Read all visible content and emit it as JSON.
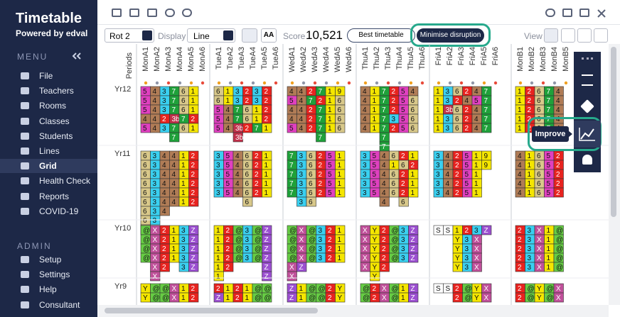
{
  "sidebar": {
    "title": "Timetable",
    "subtitle": "Powered by edval",
    "menu_heading": "MENU",
    "menu": [
      "File",
      "Teachers",
      "Rooms",
      "Classes",
      "Students",
      "Lines",
      "Grid",
      "Health Check",
      "Reports",
      "COVID-19"
    ],
    "admin_heading": "ADMIN",
    "admin": [
      "Setup",
      "Settings",
      "Help",
      "Consultant"
    ]
  },
  "toolbar": {
    "rotation": "Rot 2",
    "display_label": "Display",
    "display_value": "Line",
    "font_button": "AA",
    "score_label": "Score",
    "score": "10,521",
    "best_button": "Best timetable",
    "minimise_button": "Minimise disruption",
    "view_label": "View"
  },
  "tooltip": "Improve",
  "grid": {
    "periods_label": "Periods",
    "days": [
      {
        "columns": [
          "MonA1",
          "MonA2",
          "MonA3",
          "MonA4",
          "MonA5",
          "MonA6"
        ]
      },
      {
        "columns": [
          "TueA1",
          "TueA2",
          "TueA3",
          "TueA4",
          "TueA5",
          "TueA6"
        ]
      },
      {
        "columns": [
          "WedA1",
          "WedA2",
          "WedA3",
          "WedA4",
          "WedA5",
          "WedA6"
        ]
      },
      {
        "columns": [
          "ThuA1",
          "ThuA2",
          "ThuA3",
          "ThuA4",
          "ThuA5",
          "ThuA6"
        ]
      },
      {
        "columns": [
          "FriA1",
          "FriA2",
          "FriA3",
          "FriA4",
          "FriA5",
          "FriA6"
        ]
      },
      {
        "columns": [
          "MonB1",
          "MonB2",
          "MonB3",
          "MonB4",
          "MonB5"
        ]
      }
    ],
    "years": [
      {
        "label": "Yr12",
        "blocks": [
          [
            [
              "5",
              "4",
              "3",
              "7",
              "6",
              "1"
            ],
            [
              "5",
              "4",
              "3",
              "7",
              "6",
              "1"
            ],
            [
              "5",
              "4",
              "3",
              "7",
              "6",
              "1"
            ],
            [
              "4",
              "4",
              "2",
              "3b",
              "7",
              "2"
            ],
            [
              "5",
              "4",
              "3",
              "7",
              "6",
              "1"
            ],
            [
              null,
              null,
              null,
              "7",
              null,
              null
            ]
          ],
          [
            [
              "6",
              "1",
              "3",
              "2",
              "3",
              "2"
            ],
            [
              "6",
              "1",
              "3",
              "2",
              "3",
              "2"
            ],
            [
              "5",
              "4",
              "7",
              "6",
              "1",
              "2"
            ],
            [
              "5",
              "4",
              "7",
              "6",
              "1",
              "2"
            ],
            [
              "5",
              "4",
              "3b",
              "2",
              "7",
              "1"
            ],
            [
              null,
              null,
              "3b",
              null,
              null,
              null
            ]
          ],
          [
            [
              "4",
              "4",
              "2",
              "7",
              "1",
              "9"
            ],
            [
              "5",
              "4",
              "7",
              "2",
              "1",
              "6"
            ],
            [
              "4",
              "4",
              "2",
              "7",
              "1",
              "6"
            ],
            [
              "4",
              "4",
              "2",
              "7",
              "1",
              "6"
            ],
            [
              "5",
              "4",
              "2",
              "7",
              "1",
              "6"
            ],
            [
              null,
              null,
              null,
              "7",
              null,
              null
            ]
          ],
          [
            [
              "4",
              "1",
              "7",
              "2",
              "5",
              "4"
            ],
            [
              "4",
              "1",
              "7",
              "2",
              "5",
              "6"
            ],
            [
              "4",
              "1",
              "7",
              "2",
              "5",
              "6"
            ],
            [
              "4",
              "1",
              "7",
              "3",
              "5",
              "6"
            ],
            [
              "4",
              "1",
              "7",
              "2",
              "5",
              "6"
            ],
            [
              null,
              null,
              "7",
              null,
              null,
              null
            ],
            [
              null,
              null,
              "7",
              null,
              null,
              null
            ]
          ],
          [
            [
              "1",
              "3",
              "6",
              "2",
              "4",
              "7"
            ],
            [
              "1",
              "3",
              "2",
              "4",
              "5",
              "7"
            ],
            [
              "1",
              "3b",
              "6",
              "2",
              "4",
              "7"
            ],
            [
              "1",
              "3",
              "6",
              "2",
              "4",
              "7"
            ],
            [
              "1",
              "3",
              "6",
              "2",
              "4",
              "7"
            ]
          ],
          [
            [
              "1",
              "2",
              "6",
              "7",
              "4"
            ],
            [
              "1",
              "2",
              "6",
              "7",
              "4"
            ],
            [
              "1",
              "2",
              "6",
              "7",
              "4"
            ],
            [
              "1",
              "2",
              "6",
              "7",
              "4"
            ],
            [
              "1",
              "2",
              "6",
              "7",
              "4"
            ]
          ]
        ]
      },
      {
        "label": "Yr11",
        "blocks": [
          [
            [
              "6",
              "3",
              "4",
              "4",
              "1",
              "2"
            ],
            [
              "6",
              "3",
              "4",
              "4",
              "1",
              "2"
            ],
            [
              "6",
              "3",
              "4",
              "4",
              "1",
              "2"
            ],
            [
              "6",
              "3",
              "4",
              "4",
              "1",
              "2"
            ],
            [
              "6",
              "3",
              "4",
              "4",
              "1",
              "2"
            ],
            [
              "6",
              "3",
              "4",
              "4",
              "1",
              "2"
            ],
            [
              "6",
              "3",
              "4",
              null,
              null,
              null
            ],
            [
              "6",
              "3",
              null,
              null,
              null,
              null
            ],
            [
              "6",
              null,
              null,
              null,
              null,
              null
            ]
          ],
          [
            [
              "3",
              "5",
              "4",
              "6",
              "2",
              "1"
            ],
            [
              "3",
              "5",
              "4",
              "6",
              "2",
              "1"
            ],
            [
              "3",
              "5",
              "4",
              "6",
              "2",
              "1"
            ],
            [
              "3",
              "5",
              "4",
              "6",
              "2",
              "1"
            ],
            [
              "3",
              "5",
              "4",
              "6",
              "2",
              "1"
            ],
            [
              null,
              null,
              null,
              "6",
              null,
              null
            ]
          ],
          [
            [
              "7",
              "3",
              "6",
              "2",
              "5",
              "1"
            ],
            [
              "7",
              "3",
              "6",
              "2",
              "5",
              "1"
            ],
            [
              "7",
              "3",
              "6",
              "2",
              "5",
              "1"
            ],
            [
              "7",
              "3",
              "6",
              "2",
              "5",
              "1"
            ],
            [
              "7",
              "3",
              "6",
              "2",
              "5",
              "1"
            ],
            [
              null,
              "3",
              "6",
              null,
              null,
              null
            ]
          ],
          [
            [
              "3",
              "5",
              "4",
              "6",
              "2",
              "1"
            ],
            [
              "3",
              "5",
              "4",
              "1",
              "6",
              "2"
            ],
            [
              "3",
              "5",
              "4",
              "6",
              "2",
              "1"
            ],
            [
              "3",
              "5",
              "4",
              "6",
              "2",
              "1"
            ],
            [
              "3",
              "5",
              "4",
              "6",
              "2",
              "1"
            ],
            [
              null,
              null,
              "4",
              null,
              "6",
              null
            ]
          ],
          [
            [
              "3",
              "4",
              "2",
              "5",
              "1",
              "9"
            ],
            [
              "3",
              "4",
              "2",
              "5",
              "1",
              "9"
            ],
            [
              "3",
              "4",
              "2",
              "5",
              "1",
              null
            ],
            [
              "3",
              "4",
              "2",
              "5",
              "1",
              null
            ],
            [
              "3",
              "4",
              "2",
              "5",
              "1",
              null
            ]
          ],
          [
            [
              "4",
              "1",
              "6",
              "5",
              "2"
            ],
            [
              "4",
              "1",
              "6",
              "5",
              "2"
            ],
            [
              "4",
              "1",
              "6",
              "5",
              "2"
            ],
            [
              "4",
              "1",
              "6",
              "5",
              "2"
            ],
            [
              "4",
              "1",
              "6",
              "5",
              "2"
            ]
          ]
        ]
      },
      {
        "label": "Yr10",
        "blocks": [
          [
            [
              "@",
              "X",
              "2",
              "1",
              "3",
              "Z"
            ],
            [
              "@",
              "X",
              "2",
              "1",
              "3",
              "Z"
            ],
            [
              "@",
              "X",
              "2",
              "1",
              "3",
              "Z"
            ],
            [
              "@",
              "X",
              "2",
              "1",
              "3",
              "Z"
            ],
            [
              null,
              "X",
              "2",
              null,
              "3",
              "Z"
            ],
            [
              null,
              "X",
              null,
              null,
              null,
              null
            ]
          ],
          [
            [
              "1",
              "2",
              "@",
              "3",
              "@",
              "Z"
            ],
            [
              "1",
              "2",
              "@",
              "3",
              "@",
              "Z"
            ],
            [
              "1",
              "2",
              "@",
              "3",
              "@",
              "Z"
            ],
            [
              "1",
              "2",
              "@",
              "3",
              "@",
              "Z"
            ],
            [
              "1",
              "2",
              null,
              null,
              null,
              "Z"
            ],
            [
              "1",
              null,
              null,
              null,
              null,
              "Z"
            ]
          ],
          [
            [
              "@",
              "X",
              "@",
              "3",
              "2",
              "1"
            ],
            [
              "@",
              "X",
              "@",
              "3",
              "2",
              "1"
            ],
            [
              "@",
              "X",
              "@",
              "3",
              "2",
              "1"
            ],
            [
              "@",
              "X",
              "@",
              "3",
              "2",
              "1"
            ],
            [
              "X",
              "Z",
              null,
              null,
              null,
              null
            ],
            [
              "X",
              null,
              null,
              null,
              null,
              null
            ]
          ],
          [
            [
              "X",
              "Y",
              "2",
              "@",
              "3",
              "Z"
            ],
            [
              "X",
              "Y",
              "2",
              "@",
              "3",
              "Z"
            ],
            [
              "X",
              "Y",
              "2",
              "@",
              "3",
              "Z"
            ],
            [
              "X",
              "Y",
              "2",
              "@",
              "3",
              "Z"
            ],
            [
              "X",
              "Y",
              "2",
              null,
              null,
              null
            ],
            [
              null,
              "Y",
              null,
              null,
              null,
              null
            ]
          ],
          [
            [
              "S",
              "S",
              "1",
              "2",
              "3",
              "Z"
            ],
            [
              null,
              null,
              "Y",
              "3",
              "X",
              null
            ],
            [
              null,
              null,
              "Y",
              "3",
              "X",
              null
            ],
            [
              null,
              null,
              "Y",
              "3",
              "X",
              null
            ],
            [
              null,
              null,
              "Y",
              "3",
              "X",
              null
            ]
          ],
          [
            [
              "2",
              "3",
              "X",
              "1",
              "@"
            ],
            [
              "2",
              "3",
              "X",
              "1",
              "@"
            ],
            [
              "2",
              "3",
              "X",
              "1",
              "@"
            ],
            [
              "2",
              "3",
              "X",
              "1",
              "@"
            ],
            [
              "2",
              "3",
              "X",
              "1",
              "@"
            ]
          ]
        ]
      },
      {
        "label": "Yr9",
        "blocks": [
          [
            [
              "Y",
              "@",
              "@",
              "X",
              "1",
              "2"
            ],
            [
              "Y",
              "@",
              "@",
              "X",
              "1",
              "2"
            ]
          ],
          [
            [
              "2",
              "1",
              "2",
              "1",
              "@",
              "@"
            ],
            [
              "Z",
              "1",
              "2",
              "1",
              "@",
              "@"
            ]
          ],
          [
            [
              "Z",
              "1",
              "@",
              "@",
              "2",
              "Y"
            ],
            [
              "Z",
              "1",
              "@",
              "@",
              "2",
              "Y"
            ]
          ],
          [
            [
              "@",
              "2",
              "X",
              "@",
              "1",
              "Z"
            ],
            [
              "@",
              "2",
              "X",
              "@",
              "1",
              "Z"
            ]
          ],
          [
            [
              "S",
              "S",
              "2",
              "@",
              "Y",
              "X"
            ],
            [
              null,
              null,
              "2",
              "@",
              "Y",
              "X"
            ]
          ],
          [
            [
              "2",
              "@",
              "Y",
              "@",
              "X"
            ],
            [
              "2",
              "@",
              "Y",
              "@",
              "X"
            ]
          ]
        ]
      }
    ]
  }
}
